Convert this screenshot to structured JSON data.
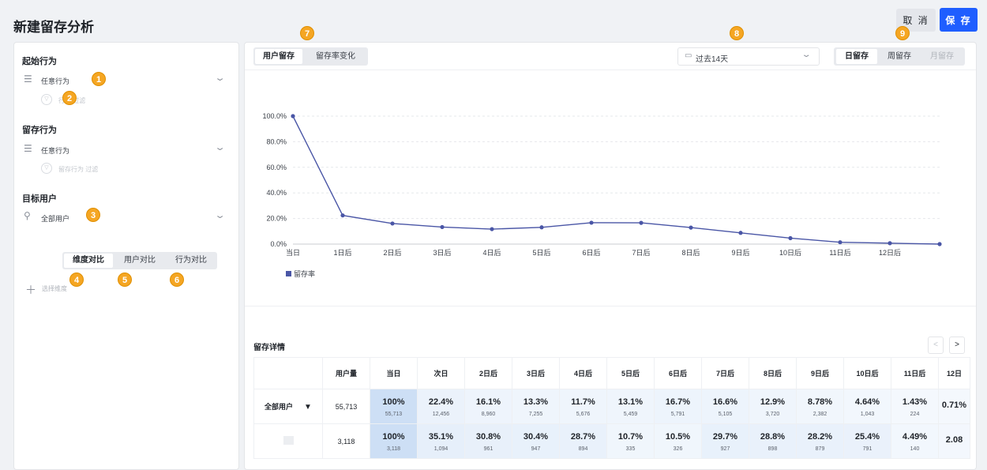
{
  "header": {
    "title": "新建留存分析",
    "cancel_label": "取 消",
    "save_label": "保 存"
  },
  "left": {
    "start_action": {
      "title": "起始行为",
      "value": "任意行为",
      "filter_label": "行为 过滤",
      "icon": "list-icon"
    },
    "retain_action": {
      "title": "留存行为",
      "value": "任意行为",
      "filter_label": "留存行为 过滤",
      "icon": "list-icon"
    },
    "target_user": {
      "title": "目标用户",
      "value": "全部用户",
      "icon": "user-icon"
    },
    "compare_tabs": [
      "维度对比",
      "用户对比",
      "行为对比"
    ],
    "add_dimension_label": "选择维度"
  },
  "badges": [
    "1",
    "2",
    "3",
    "4",
    "5",
    "6",
    "7",
    "8",
    "9"
  ],
  "right": {
    "view_tabs": [
      "用户留存",
      "留存率变化"
    ],
    "date_range": "过去14天",
    "period_tabs": [
      "日留存",
      "周留存",
      "月留存"
    ],
    "table_title": "留存详情",
    "pager_prev": "<",
    "pager_next": ">"
  },
  "chart_data": {
    "type": "line",
    "categories": [
      "当日",
      "1日后",
      "2日后",
      "3日后",
      "4日后",
      "5日后",
      "6日后",
      "7日后",
      "8日后",
      "9日后",
      "10日后",
      "11日后",
      "12日后",
      ""
    ],
    "series": [
      {
        "name": "留存率",
        "values": [
          100,
          22.4,
          16.1,
          13.3,
          11.7,
          13.1,
          16.7,
          16.6,
          12.9,
          8.78,
          4.64,
          1.43,
          0.71,
          0
        ]
      }
    ],
    "yticks": [
      "100.0%",
      "80.0%",
      "60.0%",
      "40.0%",
      "20.0%",
      "0.0%"
    ],
    "ylim": [
      0,
      100
    ],
    "grid": true,
    "legend": "bottom-left",
    "color": "#4a56a6"
  },
  "table": {
    "headers": [
      "",
      "用户量",
      "当日",
      "次日",
      "2日后",
      "3日后",
      "4日后",
      "5日后",
      "6日后",
      "7日后",
      "8日后",
      "9日后",
      "10日后",
      "11日后",
      "12日"
    ],
    "rows": [
      {
        "label": "全部用户",
        "caret": "▼",
        "users": "55,713",
        "cells": [
          [
            "100%",
            "55,713"
          ],
          [
            "22.4%",
            "12,456"
          ],
          [
            "16.1%",
            "8,960"
          ],
          [
            "13.3%",
            "7,255"
          ],
          [
            "11.7%",
            "5,676"
          ],
          [
            "13.1%",
            "5,459"
          ],
          [
            "16.7%",
            "5,791"
          ],
          [
            "16.6%",
            "5,105"
          ],
          [
            "12.9%",
            "3,720"
          ],
          [
            "8.78%",
            "2,382"
          ],
          [
            "4.64%",
            "1,043"
          ],
          [
            "1.43%",
            "224"
          ],
          [
            "0.71%",
            ""
          ]
        ]
      },
      {
        "label": "",
        "caret": "",
        "users": "3,118",
        "cells": [
          [
            "100%",
            "3,118"
          ],
          [
            "35.1%",
            "1,094"
          ],
          [
            "30.8%",
            "961"
          ],
          [
            "30.4%",
            "947"
          ],
          [
            "28.7%",
            "894"
          ],
          [
            "10.7%",
            "335"
          ],
          [
            "10.5%",
            "326"
          ],
          [
            "29.7%",
            "927"
          ],
          [
            "28.8%",
            "898"
          ],
          [
            "28.2%",
            "879"
          ],
          [
            "25.4%",
            "791"
          ],
          [
            "4.49%",
            "140"
          ],
          [
            "2.08",
            ""
          ]
        ]
      }
    ]
  }
}
